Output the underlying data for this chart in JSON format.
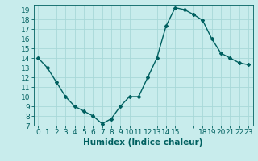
{
  "x": [
    0,
    1,
    2,
    3,
    4,
    5,
    6,
    7,
    8,
    9,
    10,
    11,
    12,
    13,
    14,
    15,
    16,
    17,
    18,
    19,
    20,
    21,
    22,
    23
  ],
  "y": [
    14,
    13,
    11.5,
    10,
    9,
    8.5,
    8,
    7.2,
    7.7,
    9,
    10,
    10,
    12,
    14,
    17.3,
    19.2,
    19,
    18.5,
    17.9,
    16,
    14.5,
    14,
    13.5,
    13.3
  ],
  "line_color": "#006060",
  "marker": "D",
  "marker_size": 2.0,
  "background_color": "#c8ecec",
  "grid_color": "#a8d8d8",
  "xlabel": "Humidex (Indice chaleur)",
  "xlabel_fontsize": 7.5,
  "xlim": [
    -0.5,
    23.5
  ],
  "ylim": [
    7,
    19.5
  ],
  "yticks": [
    7,
    8,
    9,
    10,
    11,
    12,
    13,
    14,
    15,
    16,
    17,
    18,
    19
  ],
  "xtick_labels": [
    "0",
    "1",
    "2",
    "3",
    "4",
    "5",
    "6",
    "7",
    "8",
    "9",
    "10",
    "11",
    "12",
    "13",
    "14",
    "15",
    "",
    "",
    "18",
    "19",
    "20",
    "21",
    "22",
    "23"
  ],
  "xticks": [
    0,
    1,
    2,
    3,
    4,
    5,
    6,
    7,
    8,
    9,
    10,
    11,
    12,
    13,
    14,
    15,
    16,
    17,
    18,
    19,
    20,
    21,
    22,
    23
  ],
  "tick_fontsize": 6.5,
  "linewidth": 1.0
}
